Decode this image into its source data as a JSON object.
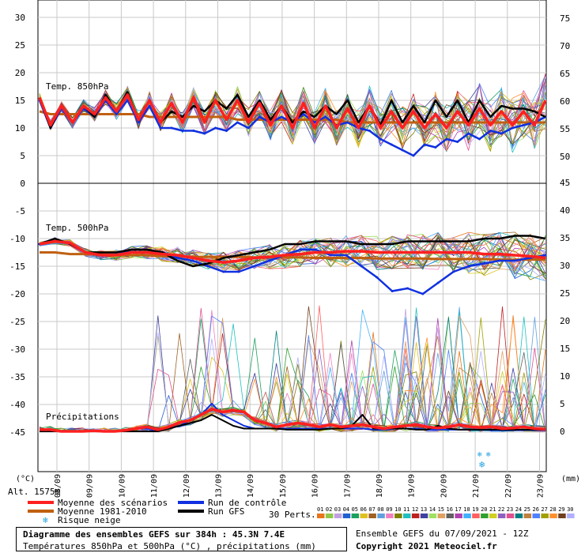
{
  "chart_data": {
    "type": "line",
    "x_dates": [
      "08/09",
      "09/09",
      "10/09",
      "11/09",
      "12/09",
      "13/09",
      "14/09",
      "15/09",
      "16/09",
      "17/09",
      "18/09",
      "19/09",
      "20/09",
      "21/09",
      "22/09",
      "23/09"
    ],
    "panels": {
      "t850": {
        "title": "Temp. 850hPa",
        "left_ticks": [
          "30",
          "25",
          "20",
          "15",
          "10",
          "5",
          "0"
        ],
        "right_ticks": [
          "75",
          "70",
          "65",
          "60",
          "55",
          "50"
        ],
        "ylim": [
          0,
          30
        ],
        "mean": [
          15.5,
          10.5,
          14,
          11,
          14,
          12.5,
          15.5,
          13,
          16,
          11.5,
          15,
          11,
          14.5,
          11,
          15.5,
          11,
          15,
          11.5,
          15,
          11,
          14.5,
          10.5,
          14,
          10,
          14.5,
          10,
          14,
          10,
          13.5,
          10,
          14,
          10,
          13,
          10,
          13,
          10,
          12.5,
          10,
          13,
          10.5,
          13.5,
          10.5,
          13,
          10.5,
          13,
          10.5,
          15
        ],
        "climatology": [
          13,
          12.5,
          12.5,
          12.5,
          12.5,
          12.5,
          12.5,
          12.5,
          12.5,
          12.5,
          12,
          12,
          12,
          12,
          12,
          12,
          12,
          12,
          11.5,
          11.5,
          11.5,
          11.5,
          11.5,
          11.5,
          11.5,
          11.5,
          11.5,
          11.5,
          11,
          11,
          11,
          11,
          11,
          11,
          11,
          11,
          11,
          11,
          11,
          11,
          11,
          11,
          11,
          11,
          11,
          11,
          11
        ],
        "control": [
          15,
          10,
          13.5,
          11,
          13.5,
          12,
          15,
          12.5,
          15,
          11,
          14,
          10,
          10,
          9.5,
          9.5,
          9,
          10,
          9.5,
          11,
          10,
          12,
          11,
          12,
          11,
          12.5,
          11,
          12,
          10.5,
          11,
          10,
          9.5,
          8,
          7,
          6,
          5,
          7,
          6.5,
          8,
          7.5,
          9,
          8,
          9.5,
          9,
          10,
          10.5,
          11,
          12
        ],
        "gfs": [
          15.5,
          10,
          14,
          11,
          14,
          12,
          16,
          13,
          16.5,
          11.5,
          15,
          11,
          13,
          12,
          14,
          13,
          15,
          13.5,
          16,
          12,
          15,
          11.5,
          14,
          11,
          13,
          12,
          14,
          12.5,
          15,
          11,
          14,
          10.5,
          15,
          11,
          14,
          11,
          15,
          12,
          15,
          11,
          15,
          12,
          14,
          13.5,
          13.5,
          13,
          12
        ]
      },
      "t500": {
        "title": "Temp. 500hPa",
        "left_ticks": [
          "-5",
          "-10",
          "-15",
          "-20",
          "-25",
          "-30",
          "-35",
          "-40",
          "-45"
        ],
        "right_ticks": [
          "45",
          "40",
          "35",
          "30",
          "25",
          "20",
          "15",
          "10",
          "5",
          "0"
        ],
        "ylim": [
          -47.5,
          0
        ],
        "mean": [
          -11,
          -10.5,
          -10.8,
          -12.5,
          -13,
          -13,
          -12.5,
          -12.5,
          -12.8,
          -13,
          -13.5,
          -14,
          -14.3,
          -14,
          -13.5,
          -13.3,
          -13,
          -12.8,
          -12.5,
          -12.5,
          -12.3,
          -12.3,
          -12.5,
          -12.5,
          -12.5,
          -12.5,
          -12.5,
          -12.5,
          -12.5,
          -12.8,
          -12.8,
          -13,
          -13.2,
          -13.5
        ],
        "climatology": [
          -12.5,
          -12.5,
          -12.8,
          -12.8,
          -12.8,
          -13,
          -13,
          -13,
          -13.2,
          -13.2,
          -13.3,
          -13.3,
          -13.3,
          -13.3,
          -13.4,
          -13.4,
          -13.4,
          -13.4,
          -13.5,
          -13.5,
          -13.5,
          -13.5,
          -13.6,
          -13.6,
          -13.6,
          -13.6,
          -13.7,
          -13.7,
          -13.7,
          -13.7,
          -13.8,
          -13.8,
          -13.8,
          -13.8
        ],
        "control": [
          -11,
          -10,
          -11,
          -12.5,
          -13,
          -13,
          -12,
          -12,
          -12.5,
          -13.5,
          -14,
          -15,
          -16,
          -16,
          -15,
          -14,
          -13,
          -12,
          -12,
          -13,
          -13,
          -15,
          -17,
          -19.5,
          -19,
          -20,
          -18,
          -16,
          -15,
          -14.5,
          -14,
          -14,
          -13.5,
          -13
        ],
        "gfs": [
          -11,
          -10,
          -11,
          -12.5,
          -12.5,
          -12.5,
          -12,
          -12,
          -12.5,
          -14,
          -15,
          -14.5,
          -13.5,
          -13,
          -12.5,
          -12,
          -11,
          -11,
          -10.5,
          -10.5,
          -10.5,
          -11,
          -11,
          -11,
          -10.5,
          -10.5,
          -10.5,
          -10.5,
          -10.5,
          -10,
          -10,
          -9.5,
          -9.5,
          -10
        ]
      },
      "precip": {
        "title": "Précipitations",
        "ylim": [
          0,
          50
        ],
        "mean": [
          0.3,
          0.3,
          0,
          0,
          0,
          0.1,
          0,
          0,
          0.2,
          0.5,
          0.8,
          0.3,
          0.8,
          1.6,
          2,
          3,
          4,
          3.5,
          3.8,
          3.5,
          2,
          1.5,
          0.8,
          1.2,
          1.5,
          1.2,
          0.8,
          1.2,
          0.8,
          1,
          1.2,
          0.8,
          0.5,
          0.8,
          1,
          1.2,
          0.8,
          0.6,
          0.8,
          1.2,
          0.8,
          0.7,
          0.8,
          0.5,
          0.6,
          0.8,
          0.5,
          0.4
        ],
        "control": [
          0,
          0,
          0,
          0,
          0,
          0,
          0,
          0,
          0,
          0.5,
          0.5,
          0,
          0.5,
          1,
          2,
          3,
          5,
          3,
          2,
          1,
          0.5,
          0.5,
          0.5,
          0.5,
          0.5,
          0.5,
          0.5,
          0.5,
          0.5,
          0.5,
          0.5,
          0.3,
          0.3,
          0.5,
          0.5,
          0.5,
          0.3,
          0.3,
          0.3,
          0.3,
          0.3,
          0.3,
          0.2,
          0.2,
          0.2,
          0.2,
          0.2,
          0.2
        ],
        "gfs": [
          0,
          0,
          0,
          0,
          0,
          0,
          0,
          0,
          0,
          0,
          0,
          0,
          0.5,
          1,
          1.5,
          2,
          3,
          2,
          1,
          0.5,
          0.5,
          0.5,
          0.5,
          0.3,
          0.3,
          0.3,
          0.3,
          0.5,
          0.5,
          1,
          3,
          0.5,
          0.5,
          0.5,
          0.5,
          0.3,
          0.3,
          1,
          0.5,
          0.3,
          0.3,
          0.3,
          0.3,
          0.3,
          0.3,
          0.3,
          0.3,
          0.3
        ]
      }
    },
    "axis_unit_left": "(°C)",
    "axis_unit_right": "(mm)",
    "altitude": "Alt. 1575m",
    "legend": {
      "mean": "Moyenne des scénarios",
      "climatology": "Moyenne 1981-2010",
      "snow": "Risque neige",
      "control": "Run de contrôle",
      "gfs": "Run GFS",
      "perts_label": "30 Perts.",
      "perts": [
        "01",
        "02",
        "03",
        "04",
        "05",
        "06",
        "07",
        "08",
        "09",
        "10",
        "11",
        "12",
        "13",
        "14",
        "15",
        "16",
        "17",
        "18",
        "19",
        "20",
        "21",
        "22",
        "23",
        "24",
        "25",
        "26",
        "27",
        "28",
        "29",
        "30"
      ],
      "pert_colors": [
        "#e8741a",
        "#8fc84a",
        "#c0a0e0",
        "#2060d0",
        "#1aa060",
        "#e0c020",
        "#a06020",
        "#60a0e0",
        "#f080c0",
        "#808000",
        "#20c0c0",
        "#c02020",
        "#4040a0",
        "#a0e060",
        "#e0a060",
        "#606060",
        "#b040b0",
        "#40b0ff",
        "#ff6060",
        "#30a030",
        "#d0d020",
        "#9060c0",
        "#e05090",
        "#008080",
        "#c08040",
        "#5080ff",
        "#a0a000",
        "#ff9030",
        "#704020",
        "#b0b0ff"
      ]
    },
    "colors": {
      "mean": "#ff2020",
      "climatology": "#c06010",
      "control": "#1030e0",
      "gfs": "#000000"
    }
  },
  "footer": {
    "title": "Diagramme des ensembles GEFS sur 384h : 45.3N 7.4E",
    "subtitle": "Températures 850hPa et 500hPa (°C) , précipitations (mm)",
    "run": "Ensemble GEFS du 07/09/2021 - 12Z",
    "copyright": "Copyright 2021 Meteociel.fr"
  }
}
